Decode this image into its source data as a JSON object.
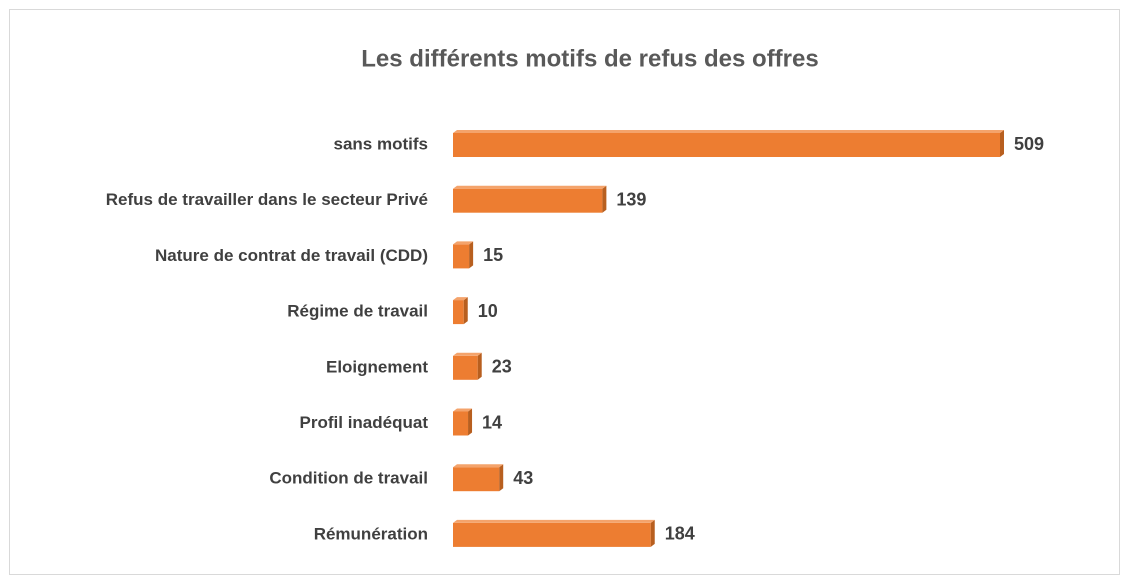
{
  "chart_data": {
    "type": "bar",
    "orientation": "horizontal",
    "title": "Les différents motifs de refus des offres",
    "categories": [
      "sans motifs",
      "Refus de travailler dans le secteur Privé",
      "Nature de contrat de travail (CDD)",
      "Régime de travail",
      "Eloignement",
      "Profil inadéquat",
      "Condition de travail",
      "Rémunération"
    ],
    "values": [
      509,
      139,
      15,
      10,
      23,
      14,
      43,
      184
    ],
    "color": "#ed7d31"
  }
}
